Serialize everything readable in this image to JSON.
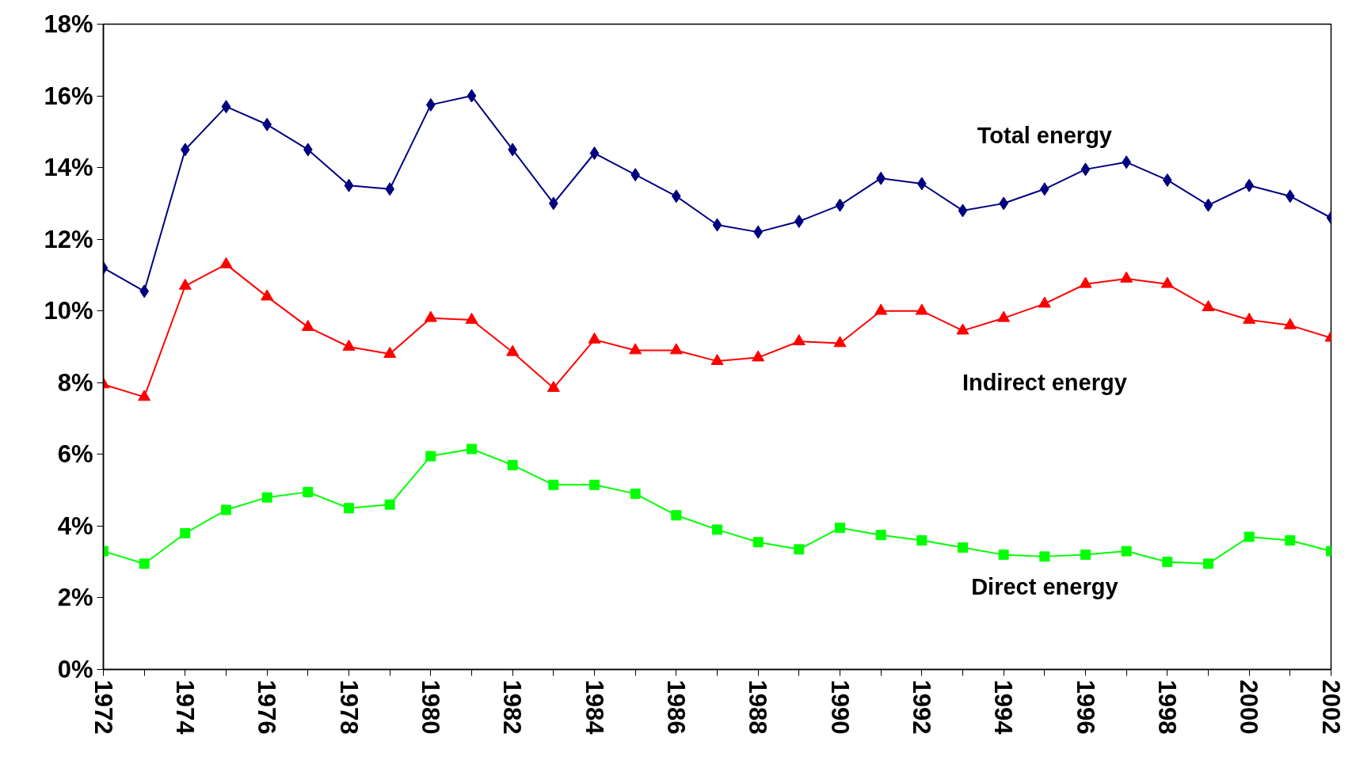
{
  "chart_data": {
    "type": "line",
    "x": [
      1972,
      1973,
      1974,
      1975,
      1976,
      1977,
      1978,
      1979,
      1980,
      1981,
      1982,
      1983,
      1984,
      1985,
      1986,
      1987,
      1988,
      1989,
      1990,
      1991,
      1992,
      1993,
      1994,
      1995,
      1996,
      1997,
      1998,
      1999,
      2000,
      2001,
      2002
    ],
    "series": [
      {
        "name": "Total energy",
        "color": "#000080",
        "marker": "diamond",
        "values": [
          11.2,
          10.55,
          14.5,
          15.7,
          15.2,
          14.5,
          13.5,
          13.4,
          15.75,
          16.0,
          14.5,
          13.0,
          14.4,
          13.8,
          13.2,
          12.4,
          12.2,
          12.5,
          12.95,
          13.7,
          13.55,
          12.8,
          13.0,
          13.4,
          13.95,
          14.15,
          13.65,
          12.95,
          13.5,
          13.2,
          12.6
        ]
      },
      {
        "name": "Indirect energy",
        "color": "#ff0000",
        "marker": "triangle",
        "values": [
          7.95,
          7.6,
          10.7,
          11.3,
          10.4,
          9.55,
          9.0,
          8.8,
          9.8,
          9.75,
          8.85,
          7.85,
          9.2,
          8.9,
          8.9,
          8.6,
          8.7,
          9.15,
          9.1,
          10.0,
          10.0,
          9.45,
          9.8,
          10.2,
          10.75,
          10.9,
          10.75,
          10.1,
          9.75,
          9.6,
          9.25
        ]
      },
      {
        "name": "Direct energy",
        "color": "#00ff00",
        "marker": "square",
        "values": [
          3.3,
          2.95,
          3.8,
          4.45,
          4.8,
          4.95,
          4.5,
          4.6,
          5.95,
          6.15,
          5.7,
          5.15,
          5.15,
          4.9,
          4.3,
          3.9,
          3.55,
          3.35,
          3.95,
          3.75,
          3.6,
          3.4,
          3.2,
          3.15,
          3.2,
          3.3,
          3.0,
          2.95,
          3.7,
          3.6,
          3.3
        ]
      }
    ],
    "xlim": [
      1972,
      2002
    ],
    "xticks": [
      1972,
      {
        "value": 1973,
        "label": null
      },
      1974,
      {
        "value": 1975,
        "label": null
      },
      1976,
      {
        "value": 1977,
        "label": null
      },
      1978,
      {
        "value": 1979,
        "label": null
      },
      1980,
      {
        "value": 1981,
        "label": null
      },
      1982,
      {
        "value": 1983,
        "label": null
      },
      1984,
      {
        "value": 1985,
        "label": null
      },
      1986,
      {
        "value": 1987,
        "label": null
      },
      1988,
      {
        "value": 1989,
        "label": null
      },
      1990,
      {
        "value": 1991,
        "label": null
      },
      1992,
      {
        "value": 1993,
        "label": null
      },
      1994,
      {
        "value": 1995,
        "label": null
      },
      1996,
      {
        "value": 1997,
        "label": null
      },
      1998,
      {
        "value": 1999,
        "label": null
      },
      2000,
      {
        "value": 2001,
        "label": null
      },
      2002
    ],
    "ylim": [
      0,
      18
    ],
    "yticks": [
      {
        "value": 0,
        "label": "0%"
      },
      {
        "value": 2,
        "label": "2%"
      },
      {
        "value": 4,
        "label": "4%"
      },
      {
        "value": 6,
        "label": "6%"
      },
      {
        "value": 8,
        "label": "8%"
      },
      {
        "value": 10,
        "label": "10%"
      },
      {
        "value": 12,
        "label": "12%"
      },
      {
        "value": 14,
        "label": "14%"
      },
      {
        "value": 16,
        "label": "16%"
      },
      {
        "value": 18,
        "label": "18%"
      }
    ],
    "grid": false,
    "line_style": "solid"
  }
}
